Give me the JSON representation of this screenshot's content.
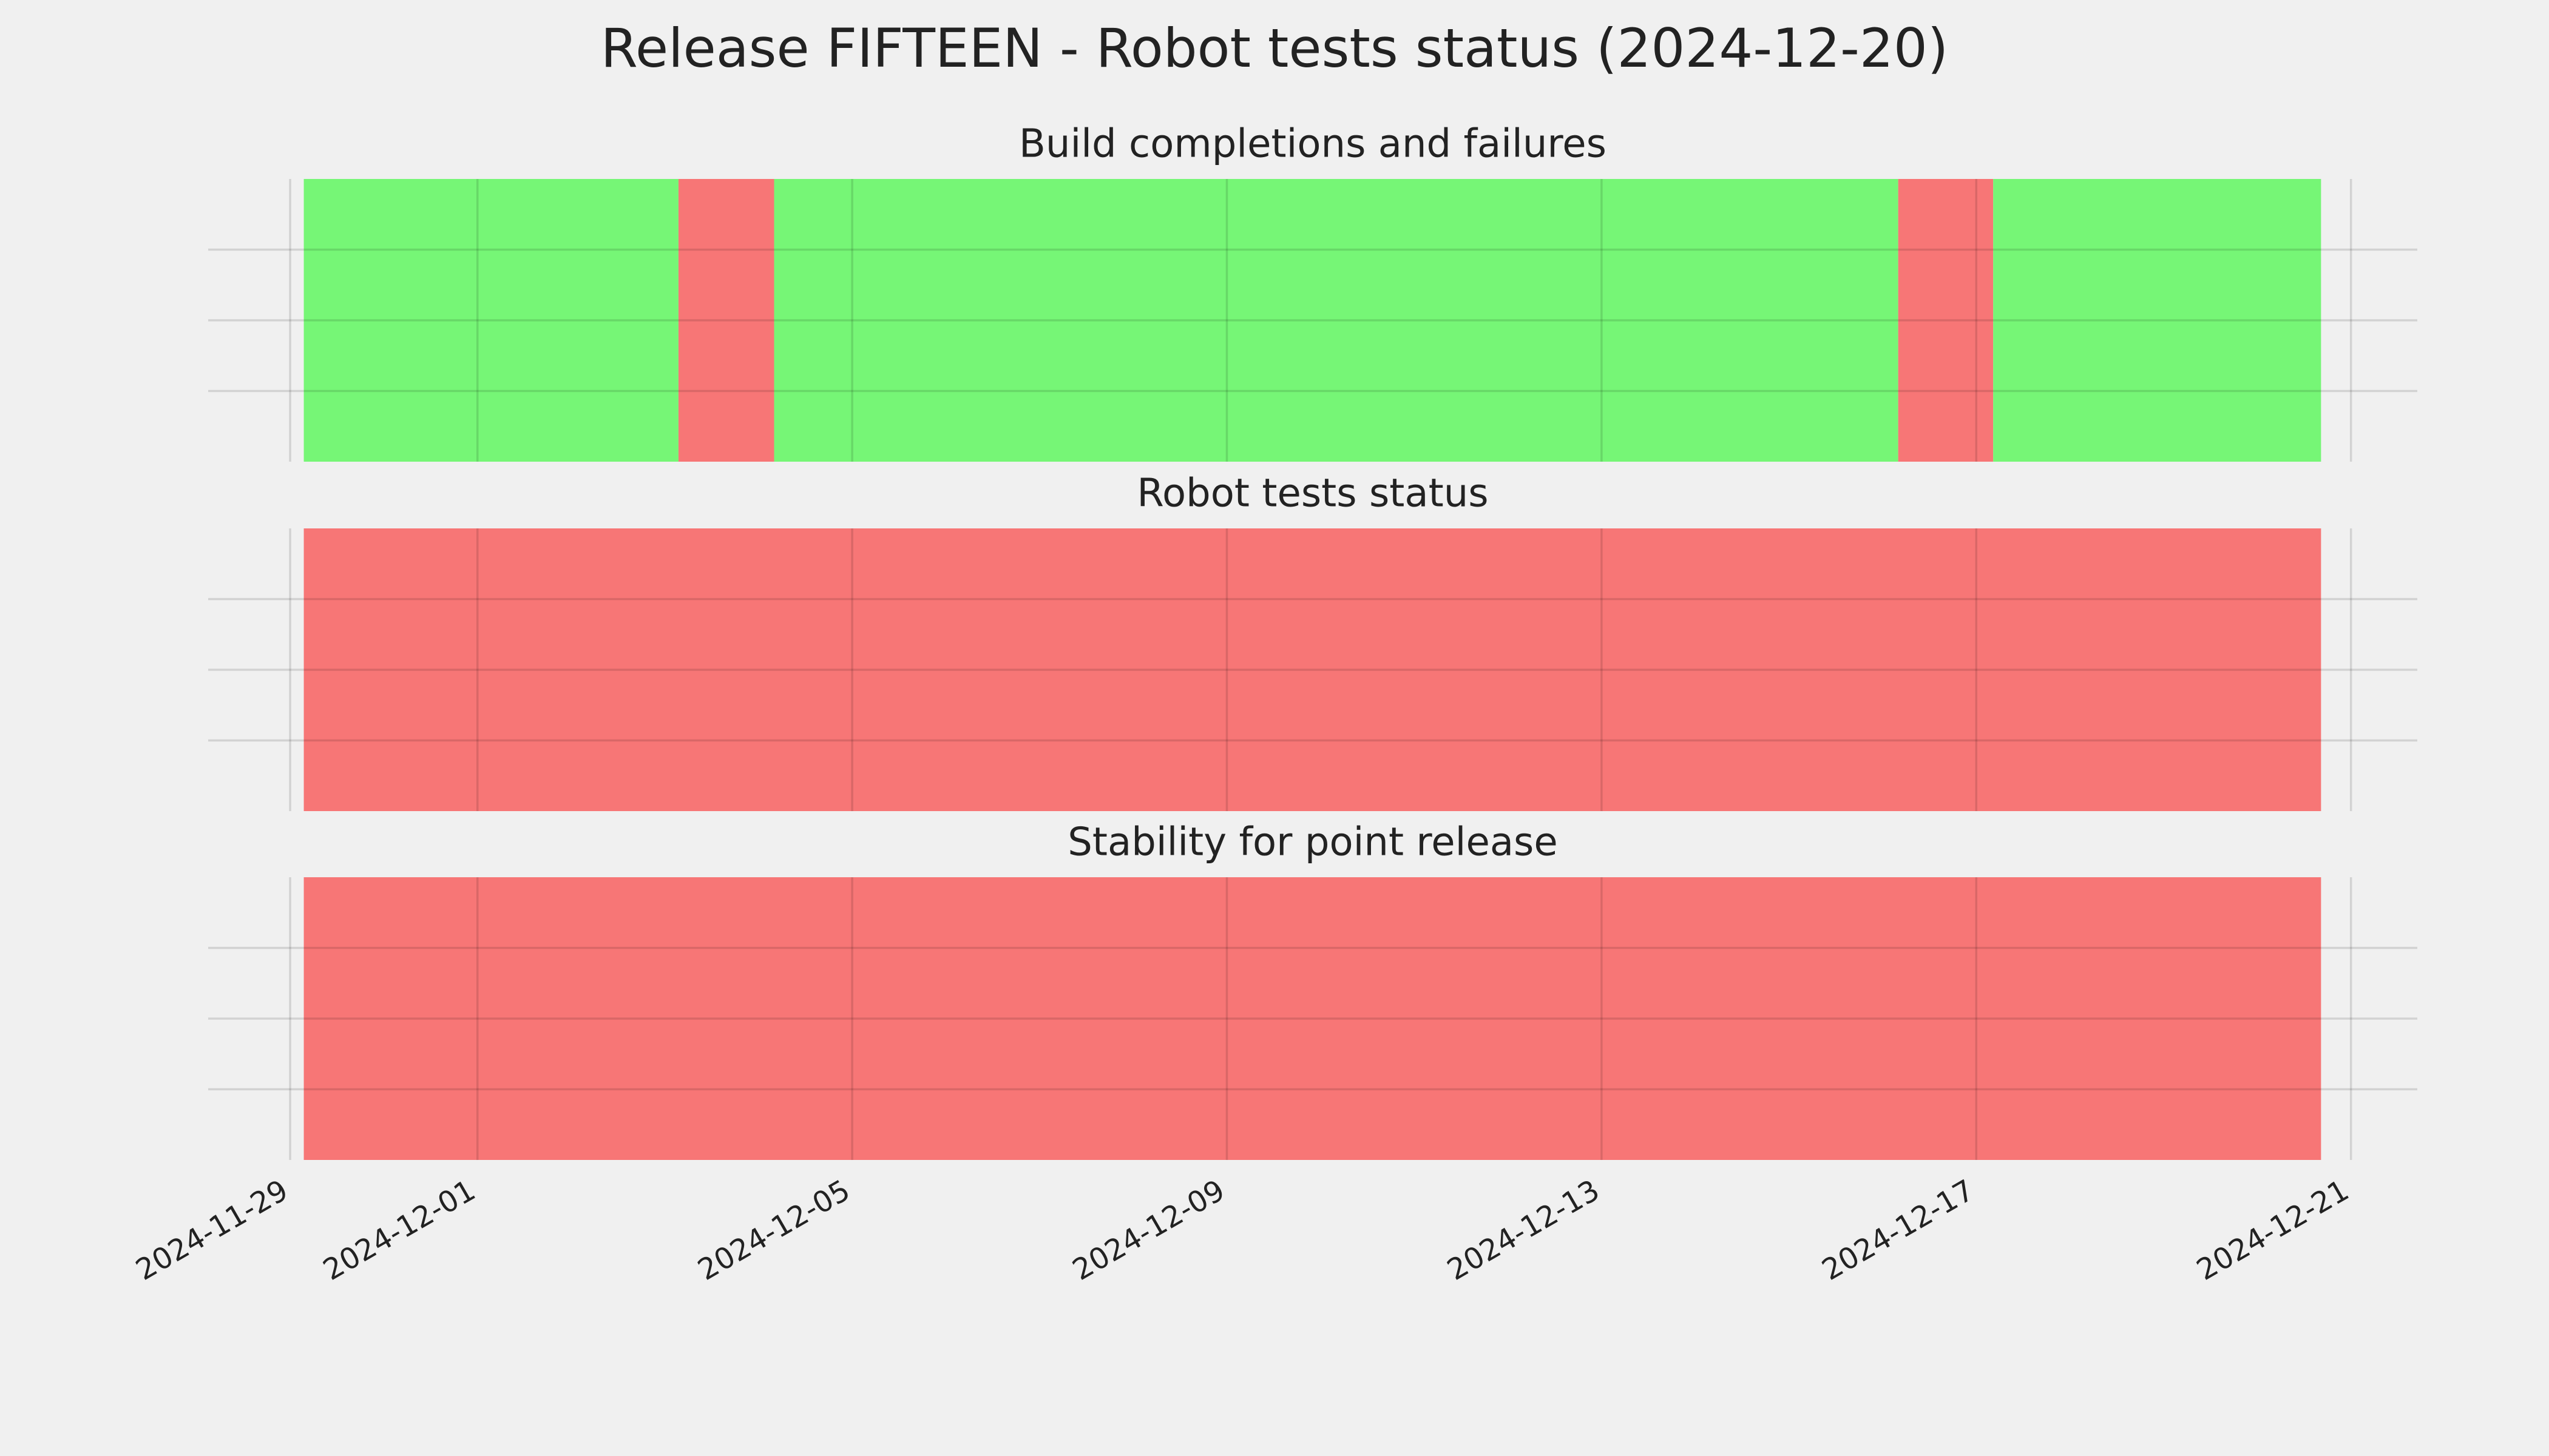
{
  "title": "Release FIFTEEN - Robot tests status (2024-12-20)",
  "chart_data": [
    {
      "type": "span",
      "title": "Build completions and failures",
      "xlim": [
        "2024-11-28T03:00",
        "2024-12-21T17:00"
      ],
      "ylim": [
        0,
        1
      ],
      "yticks": [
        0.25,
        0.5,
        0.75
      ],
      "grid": true,
      "xticks": [
        "2024-11-29",
        "2024-12-01",
        "2024-12-05",
        "2024-12-09",
        "2024-12-13",
        "2024-12-17",
        "2024-12-21"
      ],
      "segments": [
        {
          "start": "2024-11-29T03:30",
          "end": "2024-12-03T03:30",
          "color": "#76f676"
        },
        {
          "start": "2024-12-03T03:30",
          "end": "2024-12-04T04:00",
          "color": "#f77676"
        },
        {
          "start": "2024-12-04T04:00",
          "end": "2024-12-16T04:00",
          "color": "#76f676"
        },
        {
          "start": "2024-12-16T04:00",
          "end": "2024-12-17T04:20",
          "color": "#f77676"
        },
        {
          "start": "2024-12-17T04:20",
          "end": "2024-12-20T16:20",
          "color": "#76f676"
        }
      ]
    },
    {
      "type": "span",
      "title": "Robot tests status",
      "xlim": [
        "2024-11-28T03:00",
        "2024-12-21T17:00"
      ],
      "ylim": [
        0,
        1
      ],
      "yticks": [
        0.25,
        0.5,
        0.75
      ],
      "grid": true,
      "xticks": [
        "2024-11-29",
        "2024-12-01",
        "2024-12-05",
        "2024-12-09",
        "2024-12-13",
        "2024-12-17",
        "2024-12-21"
      ],
      "segments": [
        {
          "start": "2024-11-29T03:30",
          "end": "2024-12-20T16:20",
          "color": "#f77676"
        }
      ]
    },
    {
      "type": "span",
      "title": "Stability for point release",
      "xlim": [
        "2024-11-28T03:00",
        "2024-12-21T17:00"
      ],
      "ylim": [
        0,
        1
      ],
      "yticks": [
        0.25,
        0.5,
        0.75
      ],
      "grid": true,
      "xticks": [
        "2024-11-29",
        "2024-12-01",
        "2024-12-05",
        "2024-12-09",
        "2024-12-13",
        "2024-12-17",
        "2024-12-21"
      ],
      "segments": [
        {
          "start": "2024-11-29T03:30",
          "end": "2024-12-20T16:20",
          "color": "#f77676"
        }
      ]
    }
  ]
}
